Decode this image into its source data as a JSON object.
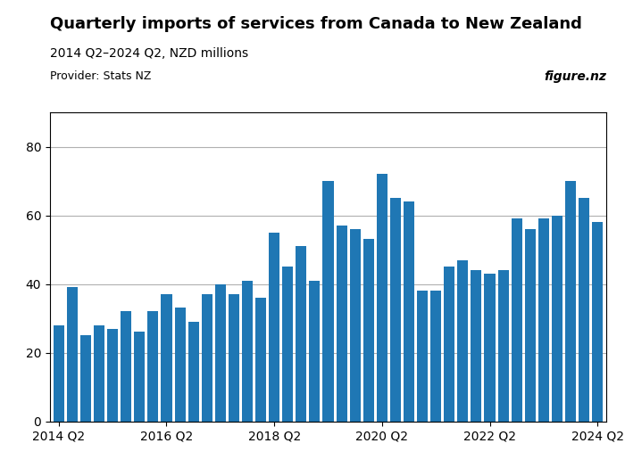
{
  "chart_data": {
    "type": "bar",
    "title": "Quarterly imports of services from Canada to New Zealand",
    "subtitle": "2014 Q2–2024 Q2, NZD millions",
    "annotations": [
      "Provider: Stats NZ",
      "figure.nz"
    ],
    "categories": [
      "2014 Q2",
      null,
      null,
      null,
      null,
      null,
      null,
      null,
      "2016 Q2",
      null,
      null,
      null,
      null,
      null,
      null,
      null,
      "2018 Q2",
      null,
      null,
      null,
      null,
      null,
      null,
      null,
      "2020 Q2",
      null,
      null,
      null,
      null,
      null,
      null,
      null,
      "2022 Q2",
      null,
      null,
      null,
      null,
      null,
      null,
      null,
      "2024 Q2"
    ],
    "values": [
      28,
      39,
      25,
      28,
      27,
      32,
      26,
      32,
      37,
      33,
      29,
      37,
      40,
      37,
      41,
      36,
      55,
      45,
      51,
      41,
      70,
      57,
      56,
      53,
      72,
      65,
      64,
      38,
      38,
      45,
      47,
      44,
      43,
      44,
      59,
      56,
      59,
      60,
      70,
      65,
      58
    ],
    "ylim": [
      0,
      90
    ],
    "yticks": [
      0,
      20,
      40,
      60,
      80
    ],
    "grid": true
  }
}
